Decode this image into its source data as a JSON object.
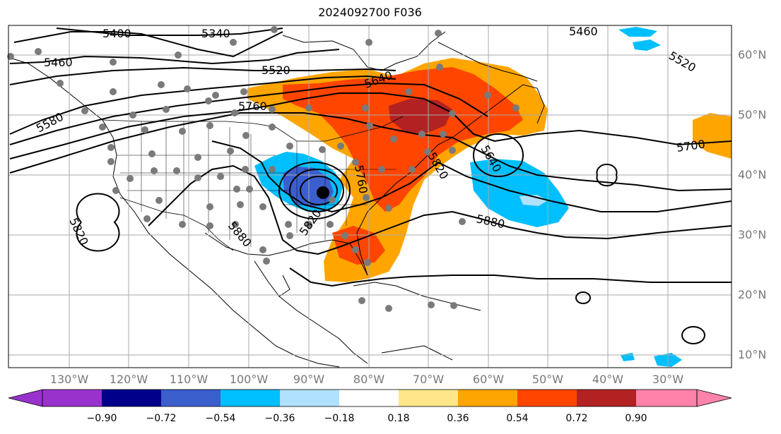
{
  "title": "2024092700 F036",
  "lat_labels": [
    "60°N",
    "50°N",
    "40°N",
    "30°N",
    "20°N",
    "10°N"
  ],
  "lon_labels": [
    "130°W",
    "120°W",
    "110°W",
    "100°W",
    "90°W",
    "80°W",
    "70°W",
    "60°W",
    "50°W",
    "40°W",
    "30°W"
  ],
  "contour_labels": {
    "c5400": "5400",
    "c5340": "5340",
    "c5460_w": "5460",
    "c5460_e": "5460",
    "c5520_w": "5520",
    "c5520_e": "5520",
    "c5580": "5580",
    "c5640": "5640",
    "c5760_w": "5760",
    "c5760_c": "5760",
    "c5640_e": "5640",
    "c5820_e": "5820",
    "c5700": "5700",
    "c5880_e": "5880",
    "c5820_w": "5820",
    "c5880_w": "5880",
    "c5820_c": "5820"
  },
  "colorbar": {
    "ticks": [
      "−0.90",
      "−0.72",
      "−0.54",
      "−0.36",
      "−0.18",
      "0.18",
      "0.36",
      "0.54",
      "0.72",
      "0.90"
    ],
    "colors": [
      "#9932cc",
      "#00008b",
      "#3a5fcd",
      "#00bfff",
      "#b0e2ff",
      "#ffffff",
      "#ffe68a",
      "#ffa500",
      "#ff4500",
      "#b22222",
      "#ff82ab"
    ]
  }
}
